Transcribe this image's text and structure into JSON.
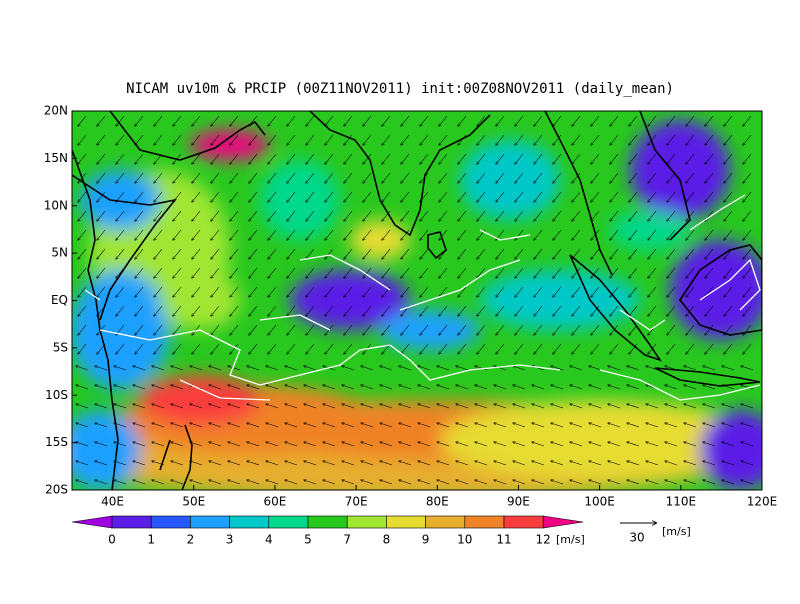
{
  "map": {
    "title": "NICAM uv10m & PRCIP (00Z11NOV2011) init:00Z08NOV2011 (daily_mean)",
    "lonlim": [
      35,
      120
    ],
    "latlim": [
      -20,
      20
    ],
    "lon_ticks": [
      {
        "value": 40,
        "label": "40E"
      },
      {
        "value": 50,
        "label": "50E"
      },
      {
        "value": 60,
        "label": "60E"
      },
      {
        "value": 70,
        "label": "70E"
      },
      {
        "value": 80,
        "label": "80E"
      },
      {
        "value": 90,
        "label": "90E"
      },
      {
        "value": 100,
        "label": "100E"
      },
      {
        "value": 110,
        "label": "110E"
      },
      {
        "value": 120,
        "label": "120E"
      }
    ],
    "lat_ticks": [
      {
        "value": 20,
        "label": "20N"
      },
      {
        "value": 15,
        "label": "15N"
      },
      {
        "value": 10,
        "label": "10N"
      },
      {
        "value": 5,
        "label": "5N"
      },
      {
        "value": 0,
        "label": "EQ"
      },
      {
        "value": -5,
        "label": "5S"
      },
      {
        "value": -10,
        "label": "10S"
      },
      {
        "value": -15,
        "label": "15S"
      },
      {
        "value": -20,
        "label": "20S"
      }
    ],
    "colorbar": {
      "levels": [
        0,
        1,
        2,
        3,
        4,
        5,
        7,
        8,
        9,
        10,
        11,
        12
      ],
      "colors": [
        "#a000e0",
        "#5a1ee6",
        "#2858ff",
        "#1ea0ff",
        "#00c8c8",
        "#00d88c",
        "#28c81e",
        "#a0e632",
        "#e6dc32",
        "#e6af2d",
        "#f08228",
        "#fa3c3c",
        "#f00082"
      ],
      "units": "[m/s]"
    },
    "reference_vector": {
      "value": 30,
      "units": "[m/s]"
    }
  }
}
